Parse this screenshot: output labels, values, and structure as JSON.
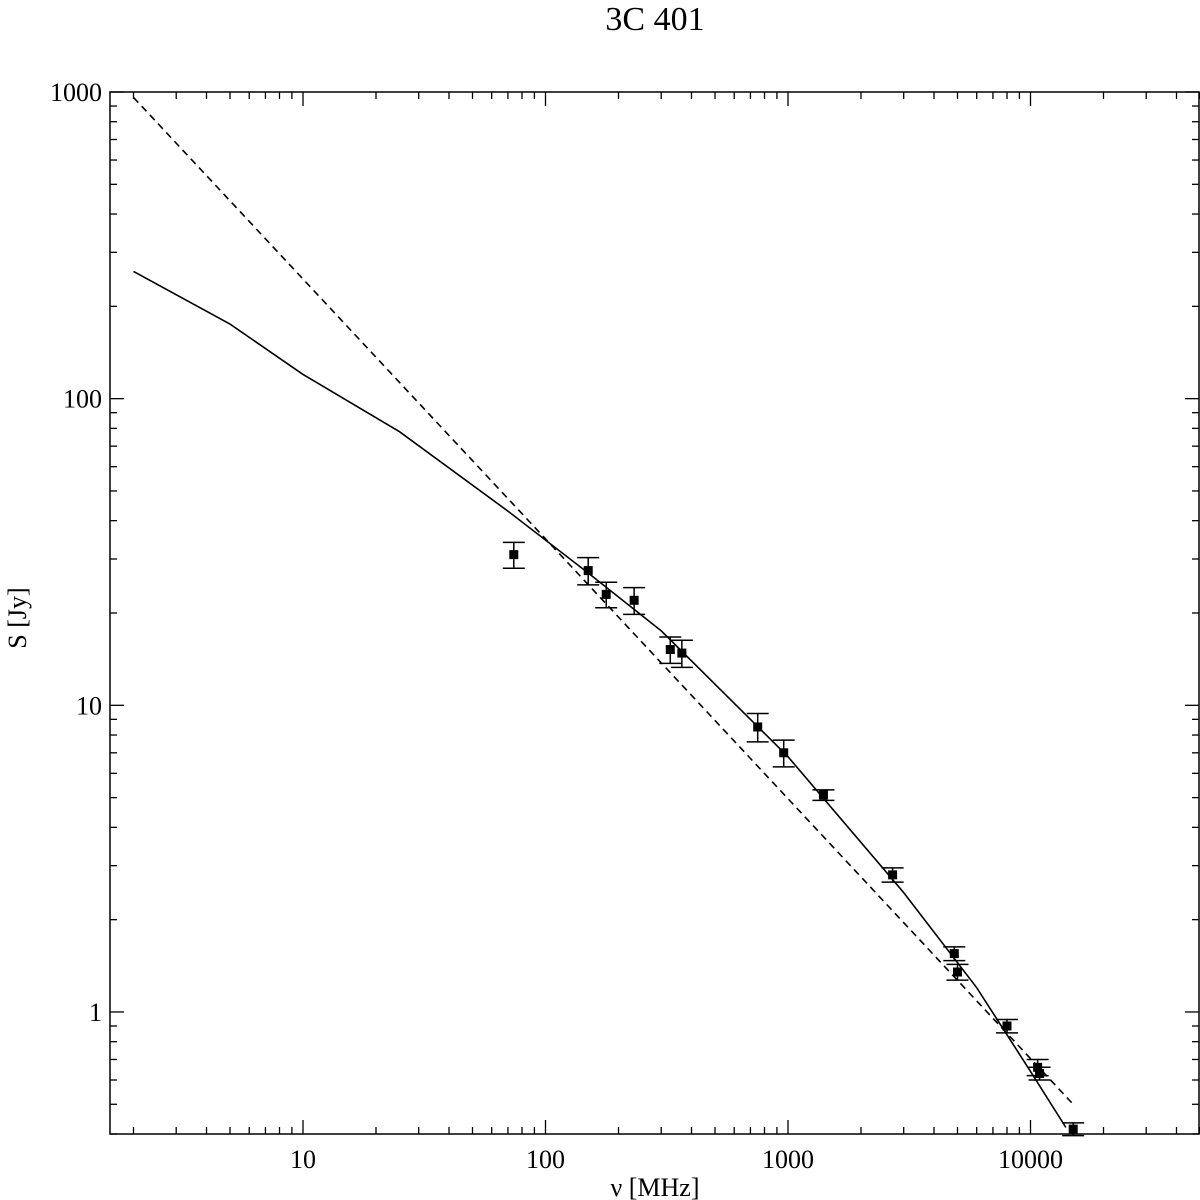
{
  "chart_data": {
    "type": "scatter",
    "title": "3C 401",
    "xlabel": "ν [MHz]",
    "ylabel": "S [Jy]",
    "xscale": "log",
    "yscale": "log",
    "xlim": [
      1.6,
      50000
    ],
    "ylim": [
      0.4,
      1000
    ],
    "grid": false,
    "x_tick_labels": [
      {
        "value": 10,
        "label": "10"
      },
      {
        "value": 100,
        "label": "100"
      },
      {
        "value": 1000,
        "label": "1000"
      },
      {
        "value": 10000,
        "label": "10000"
      }
    ],
    "y_tick_labels": [
      {
        "value": 1,
        "label": "1"
      },
      {
        "value": 10,
        "label": "10"
      },
      {
        "value": 100,
        "label": "100"
      },
      {
        "value": 1000,
        "label": "1000"
      }
    ],
    "series": [
      {
        "style": "solid",
        "x": [
          2,
          5,
          10,
          25,
          70,
          150,
          300,
          1000,
          3000,
          6000,
          10000,
          14000
        ],
        "y": [
          260,
          175,
          120,
          78,
          43,
          27,
          17.5,
          6.8,
          2.45,
          1.2,
          0.64,
          0.42
        ]
      },
      {
        "style": "dashed",
        "x": [
          2,
          15000
        ],
        "y": [
          960,
          0.5
        ]
      },
      {
        "style": "markers-with-errorbars",
        "points": [
          {
            "x": 74,
            "y": 31,
            "err": 3
          },
          {
            "x": 150,
            "y": 27.5,
            "err": 2.8
          },
          {
            "x": 178,
            "y": 23,
            "err": 2.2
          },
          {
            "x": 232,
            "y": 22,
            "err": 2.2
          },
          {
            "x": 327,
            "y": 15.2,
            "err": 1.5
          },
          {
            "x": 365,
            "y": 14.8,
            "err": 1.5
          },
          {
            "x": 750,
            "y": 8.5,
            "err": 0.9
          },
          {
            "x": 960,
            "y": 7,
            "err": 0.7
          },
          {
            "x": 1400,
            "y": 5.1,
            "err": 0.2
          },
          {
            "x": 2700,
            "y": 2.8,
            "err": 0.15
          },
          {
            "x": 4850,
            "y": 1.55,
            "err": 0.08
          },
          {
            "x": 5000,
            "y": 1.35,
            "err": 0.08
          },
          {
            "x": 8000,
            "y": 0.9,
            "err": 0.045
          },
          {
            "x": 10700,
            "y": 0.66,
            "err": 0.04
          },
          {
            "x": 10900,
            "y": 0.63,
            "err": 0.03
          },
          {
            "x": 15000,
            "y": 0.415,
            "err": 0.02
          }
        ]
      }
    ]
  }
}
